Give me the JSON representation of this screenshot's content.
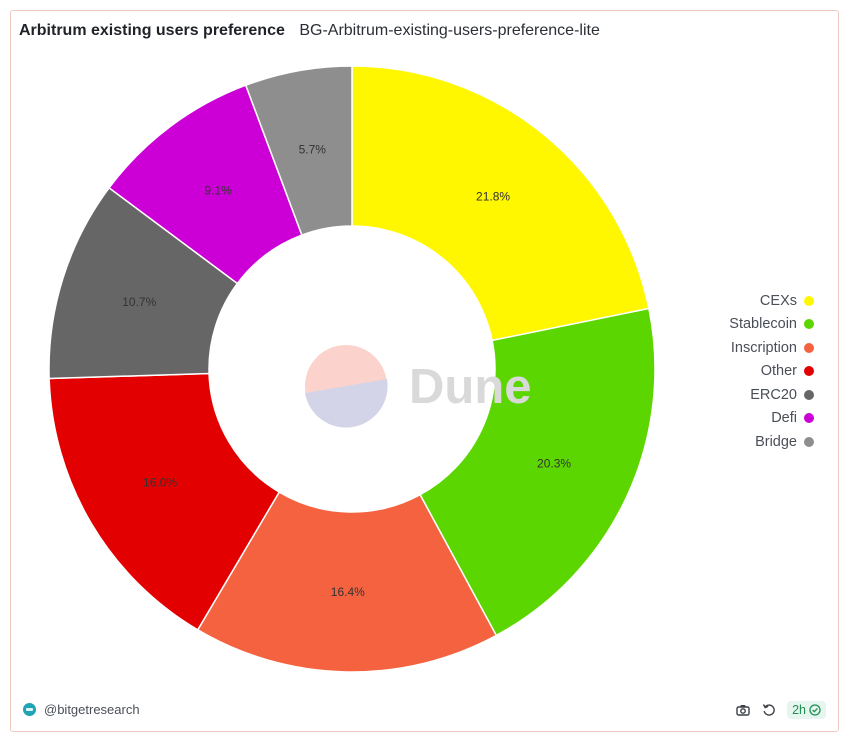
{
  "header": {
    "title": "Arbitrum existing users preference",
    "subtitle": "BG-Arbitrum-existing-users-preference-lite"
  },
  "watermark": {
    "text": "Dune"
  },
  "footer": {
    "author": "@bitgetresearch",
    "refresh_age": "2h",
    "icons": [
      "camera-icon",
      "refresh-icon",
      "check-circle-icon"
    ]
  },
  "chart_data": {
    "type": "pie",
    "donut": true,
    "title": "",
    "legend_position": "right",
    "slices": [
      {
        "name": "CEXs",
        "value": 21.8,
        "label": "21.8%",
        "color": "#fff700"
      },
      {
        "name": "Stablecoin",
        "value": 20.3,
        "label": "20.3%",
        "color": "#5cd600"
      },
      {
        "name": "Inscription",
        "value": 16.4,
        "label": "16.4%",
        "color": "#f46240"
      },
      {
        "name": "Other",
        "value": 16.0,
        "label": "16.0%",
        "color": "#e30000"
      },
      {
        "name": "ERC20",
        "value": 10.7,
        "label": "10.7%",
        "color": "#666666"
      },
      {
        "name": "Defi",
        "value": 9.1,
        "label": "9.1%",
        "color": "#cc00d6"
      },
      {
        "name": "Bridge",
        "value": 5.7,
        "label": "5.7%",
        "color": "#8e8e8e"
      }
    ]
  }
}
